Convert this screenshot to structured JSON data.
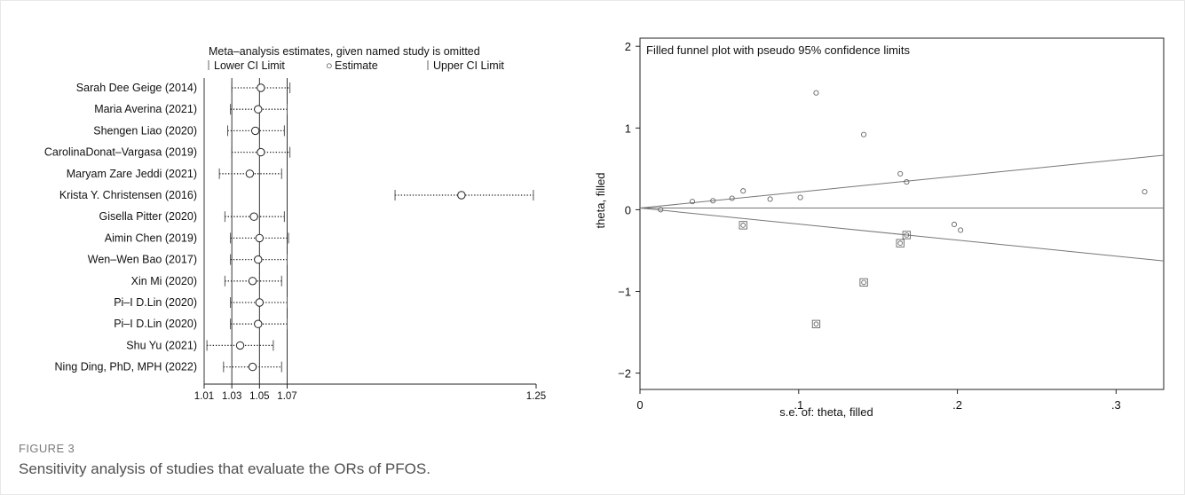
{
  "figure": {
    "label": "FIGURE 3",
    "caption": "Sensitivity analysis of studies that evaluate the ORs of PFOS."
  },
  "chart_data": [
    {
      "type": "forest",
      "title": "Meta–analysis estimates, given named study is omitted",
      "legend": {
        "lower": "Lower CI Limit",
        "estimate": "Estimate",
        "upper": "Upper CI Limit",
        "estimate_marker": "○"
      },
      "xlim": [
        1.01,
        1.25
      ],
      "xticks": [
        1.01,
        1.03,
        1.05,
        1.07,
        1.25
      ],
      "xtick_labels": [
        "1.01",
        "1.03",
        "1.05",
        "1.07",
        "1.25"
      ],
      "reference_lines": [
        1.01,
        1.03,
        1.05,
        1.07
      ],
      "studies": [
        {
          "name": "Sarah Dee Geige (2014)",
          "lower": 1.03,
          "estimate": 1.051,
          "upper": 1.072
        },
        {
          "name": "Maria Averina (2021)",
          "lower": 1.029,
          "estimate": 1.049,
          "upper": 1.07
        },
        {
          "name": "Shengen Liao (2020)",
          "lower": 1.027,
          "estimate": 1.047,
          "upper": 1.068
        },
        {
          "name": "CarolinaDonat–Vargasa (2019)",
          "lower": 1.03,
          "estimate": 1.051,
          "upper": 1.072
        },
        {
          "name": "Maryam Zare Jeddi (2021)",
          "lower": 1.021,
          "estimate": 1.043,
          "upper": 1.066
        },
        {
          "name": "Krista Y. Christensen (2016)",
          "lower": 1.148,
          "estimate": 1.196,
          "upper": 1.248
        },
        {
          "name": "Gisella Pitter (2020)",
          "lower": 1.025,
          "estimate": 1.046,
          "upper": 1.068
        },
        {
          "name": "Aimin Chen (2019)",
          "lower": 1.029,
          "estimate": 1.05,
          "upper": 1.071
        },
        {
          "name": "Wen–Wen Bao (2017)",
          "lower": 1.029,
          "estimate": 1.049,
          "upper": 1.07
        },
        {
          "name": "Xin Mi (2020)",
          "lower": 1.025,
          "estimate": 1.045,
          "upper": 1.066
        },
        {
          "name": "Pi–I D.Lin (2020)",
          "lower": 1.029,
          "estimate": 1.05,
          "upper": 1.07
        },
        {
          "name": "Pi–I D.Lin (2020)",
          "lower": 1.029,
          "estimate": 1.049,
          "upper": 1.07
        },
        {
          "name": "Shu Yu (2021)",
          "lower": 1.012,
          "estimate": 1.036,
          "upper": 1.06
        },
        {
          "name": "Ning Ding, PhD, MPH (2022)",
          "lower": 1.024,
          "estimate": 1.045,
          "upper": 1.066
        }
      ]
    },
    {
      "type": "scatter",
      "title": "Filled funnel plot with pseudo 95% confidence limits",
      "xlabel": "s.e. of: theta, filled",
      "ylabel": "theta, filled",
      "xlim": [
        0,
        0.33
      ],
      "ylim": [
        -2.2,
        2.1
      ],
      "xticks": [
        0,
        0.1,
        0.2,
        0.3
      ],
      "xtick_labels": [
        "0",
        ".1",
        ".2",
        ".3"
      ],
      "yticks": [
        -2,
        -1,
        0,
        1,
        2
      ],
      "ytick_labels": [
        "−2",
        "−1",
        "0",
        "1",
        "2"
      ],
      "center_line": 0.02,
      "ci_z": 1.96,
      "observed": [
        {
          "x": 0.013,
          "y": 0.0
        },
        {
          "x": 0.033,
          "y": 0.1
        },
        {
          "x": 0.046,
          "y": 0.11
        },
        {
          "x": 0.058,
          "y": 0.14
        },
        {
          "x": 0.065,
          "y": 0.23
        },
        {
          "x": 0.082,
          "y": 0.13
        },
        {
          "x": 0.101,
          "y": 0.15
        },
        {
          "x": 0.111,
          "y": 1.43
        },
        {
          "x": 0.141,
          "y": 0.92
        },
        {
          "x": 0.164,
          "y": 0.44
        },
        {
          "x": 0.168,
          "y": 0.34
        },
        {
          "x": 0.198,
          "y": -0.18
        },
        {
          "x": 0.202,
          "y": -0.25
        },
        {
          "x": 0.318,
          "y": 0.22
        }
      ],
      "filled": [
        {
          "x": 0.065,
          "y": -0.19
        },
        {
          "x": 0.111,
          "y": -1.4
        },
        {
          "x": 0.141,
          "y": -0.89
        },
        {
          "x": 0.164,
          "y": -0.41
        },
        {
          "x": 0.168,
          "y": -0.31
        }
      ]
    }
  ]
}
